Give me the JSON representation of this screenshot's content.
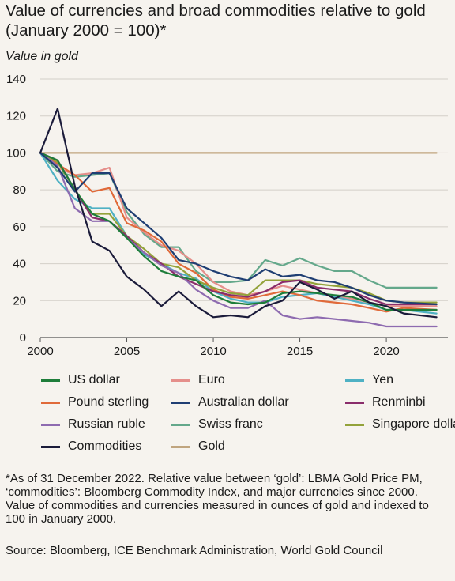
{
  "title": "Value of currencies and broad commodities relative to gold (January 2000 = 100)*",
  "footnote": "*As of 31 December 2022. Relative value between ‘gold’: LBMA Gold Price PM, ‘commodities’: Bloomberg Commodity Index, and major currencies since 2000. Value of commodities and currencies measured in ounces of gold and indexed to 100 in January 2000.",
  "source": "Source: Bloomberg, ICE Benchmark Administration, World Gold Council",
  "chart_data": {
    "type": "line",
    "title": "Value of currencies and broad commodities relative to gold (January 2000 = 100)*",
    "ylabel": "Value in gold",
    "xlabel": "",
    "xlim": [
      2000,
      2023.1
    ],
    "ylim": [
      0,
      140
    ],
    "xticks": [
      2000,
      2005,
      2010,
      2015,
      2020
    ],
    "yticks": [
      0,
      20,
      40,
      60,
      80,
      100,
      120,
      140
    ],
    "grid": "horizontal",
    "legend_position": "bottom",
    "x": [
      2000,
      2001,
      2002,
      2003,
      2004,
      2005,
      2006,
      2007,
      2008,
      2009,
      2010,
      2011,
      2012,
      2013,
      2014,
      2015,
      2016,
      2017,
      2018,
      2019,
      2020,
      2021,
      2022.9
    ],
    "series": [
      {
        "name": "US dollar",
        "color": "#1e7d3a",
        "values": [
          100,
          96,
          80,
          67,
          63,
          54,
          44,
          36,
          33,
          31,
          23,
          19,
          18,
          19,
          24,
          25,
          24,
          23,
          22,
          19,
          15,
          15,
          15
        ]
      },
      {
        "name": "Euro",
        "color": "#e58f8b",
        "values": [
          100,
          92,
          88,
          89,
          92,
          65,
          57,
          50,
          47,
          40,
          30,
          25,
          23,
          25,
          28,
          26,
          24,
          22,
          21,
          19,
          17,
          17,
          17
        ]
      },
      {
        "name": "Yen",
        "color": "#4fb1c4",
        "values": [
          100,
          85,
          75,
          70,
          70,
          55,
          45,
          40,
          35,
          32,
          25,
          21,
          19,
          19,
          22,
          23,
          24,
          22,
          20,
          18,
          15,
          15,
          13
        ]
      },
      {
        "name": "Pound sterling",
        "color": "#e06a3a",
        "values": [
          100,
          94,
          88,
          79,
          81,
          62,
          58,
          52,
          40,
          35,
          26,
          22,
          21,
          23,
          25,
          23,
          20,
          19,
          18,
          16,
          14,
          16,
          15
        ]
      },
      {
        "name": "Australian dollar",
        "color": "#1f3e73",
        "values": [
          100,
          92,
          79,
          89,
          89,
          70,
          62,
          54,
          42,
          40,
          36,
          33,
          31,
          37,
          33,
          34,
          31,
          30,
          27,
          23,
          20,
          19,
          18
        ]
      },
      {
        "name": "Renminbi",
        "color": "#8a2d6b",
        "values": [
          100,
          96,
          80,
          65,
          63,
          55,
          46,
          40,
          33,
          29,
          25,
          23,
          22,
          25,
          30,
          31,
          27,
          26,
          25,
          21,
          18,
          18,
          18
        ]
      },
      {
        "name": "Russian ruble",
        "color": "#8e6bb0",
        "values": [
          100,
          93,
          70,
          63,
          63,
          54,
          46,
          39,
          35,
          26,
          20,
          16,
          16,
          20,
          12,
          10,
          11,
          10,
          9,
          8,
          6,
          6,
          6
        ]
      },
      {
        "name": "Swiss franc",
        "color": "#64a88b",
        "values": [
          100,
          90,
          87,
          88,
          89,
          68,
          56,
          49,
          49,
          36,
          30,
          30,
          31,
          42,
          39,
          43,
          39,
          36,
          36,
          31,
          27,
          27,
          27
        ]
      },
      {
        "name": "Singapore dollar",
        "color": "#93a23a",
        "values": [
          100,
          95,
          80,
          67,
          67,
          55,
          48,
          40,
          38,
          31,
          27,
          24,
          23,
          31,
          31,
          31,
          29,
          28,
          27,
          24,
          20,
          19,
          19
        ]
      },
      {
        "name": "Commodities",
        "color": "#1b1b3a",
        "values": [
          100,
          124,
          82,
          52,
          47,
          33,
          26,
          17,
          25,
          17,
          11,
          12,
          11,
          17,
          20,
          30,
          26,
          21,
          25,
          19,
          17,
          13,
          11
        ]
      },
      {
        "name": "Gold",
        "color": "#c0a57f",
        "values": [
          100,
          100,
          100,
          100,
          100,
          100,
          100,
          100,
          100,
          100,
          100,
          100,
          100,
          100,
          100,
          100,
          100,
          100,
          100,
          100,
          100,
          100,
          100
        ]
      }
    ]
  }
}
